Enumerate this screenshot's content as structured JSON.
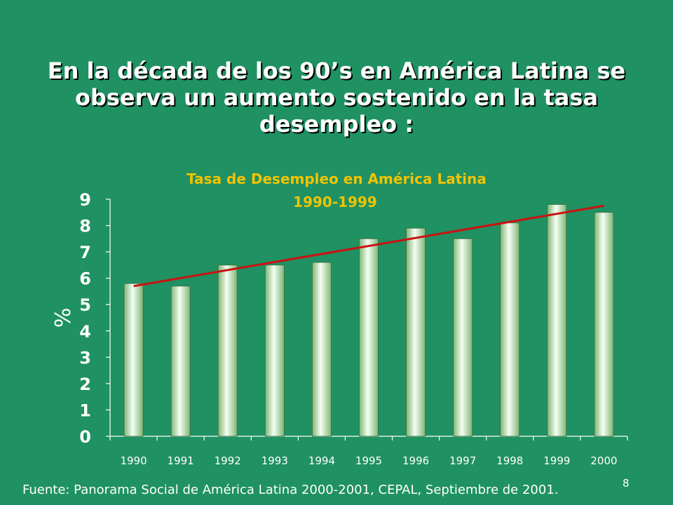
{
  "slide": {
    "title_lines": [
      "En la década de los 90’s en América Latina se",
      "observa un aumento sostenido en la tasa",
      "desempleo :"
    ],
    "source": "Fuente: Panorama Social de América Latina 2000-2001, CEPAL, Septiembre de 2001.",
    "page_number": "8"
  },
  "colors": {
    "background": "#1f9162",
    "chart_title": "#f2c300",
    "bar_light": "#f4fff2",
    "bar_dark": "#7fb577",
    "trendline": "#cc1111"
  },
  "chart_data": {
    "type": "bar",
    "title": "Tasa de Desempleo en América Latina",
    "subtitle": "1990-1999",
    "ylabel": "%",
    "xlabel": "",
    "ylim": [
      0,
      9
    ],
    "yticks": [
      0,
      1,
      2,
      3,
      4,
      5,
      6,
      7,
      8,
      9
    ],
    "categories": [
      "1990",
      "1991",
      "1992",
      "1993",
      "1994",
      "1995",
      "1996",
      "1997",
      "1998",
      "1999",
      "2000"
    ],
    "values": [
      5.8,
      5.7,
      6.5,
      6.5,
      6.6,
      7.5,
      7.9,
      7.5,
      8.1,
      8.8,
      8.5
    ],
    "trendline": {
      "type": "linear",
      "start_value": 5.7,
      "end_value": 8.75
    },
    "grid": false,
    "legend": "none"
  }
}
